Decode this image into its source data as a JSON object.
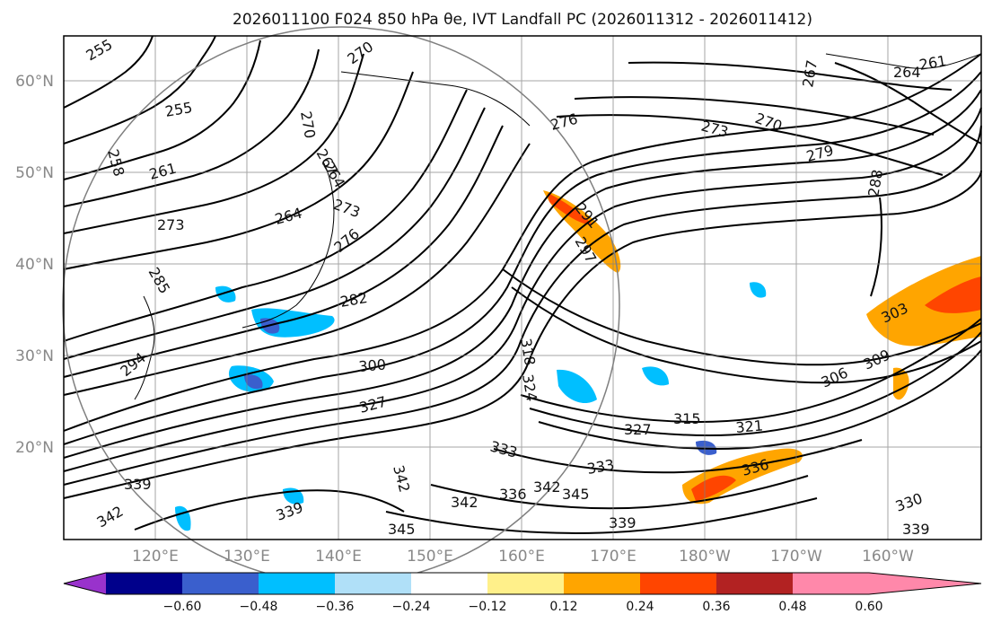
{
  "title": "2026011100 F024 850 hPa θe, IVT Landfall PC (2026011312 - 2026011412)",
  "lat_labels": [
    "60°N",
    "50°N",
    "40°N",
    "30°N",
    "20°N"
  ],
  "lon_labels": [
    "120°E",
    "130°E",
    "140°E",
    "150°E",
    "160°E",
    "170°E",
    "180°W",
    "170°W",
    "160°W"
  ],
  "colorbar": {
    "ticks": [
      "−0.60",
      "−0.48",
      "−0.36",
      "−0.24",
      "−0.12",
      "0.12",
      "0.24",
      "0.36",
      "0.48",
      "0.60"
    ],
    "colors": [
      "#9932cc",
      "#00008b",
      "#3a5fcd",
      "#00bfff",
      "#b0e0f8",
      "#ffffff",
      "#fff08a",
      "#ffa500",
      "#ff4500",
      "#b22222",
      "#ff88aa"
    ]
  },
  "contour_labels": [
    "255",
    "270",
    "255",
    "258",
    "261",
    "264",
    "267",
    "273",
    "270",
    "276",
    "273",
    "270",
    "264",
    "261",
    "267",
    "279",
    "288",
    "273",
    "276",
    "264",
    "291",
    "297",
    "285",
    "282",
    "303",
    "294",
    "300",
    "318",
    "324",
    "309",
    "306",
    "327",
    "315",
    "321",
    "327",
    "333",
    "333",
    "336",
    "339",
    "342",
    "336",
    "342",
    "345",
    "339",
    "342",
    "330",
    "339",
    "339",
    "342",
    "345"
  ],
  "map_colors": {
    "land": "#f3f3f3",
    "contour": "#000000",
    "grid": "#7f7f7f"
  }
}
